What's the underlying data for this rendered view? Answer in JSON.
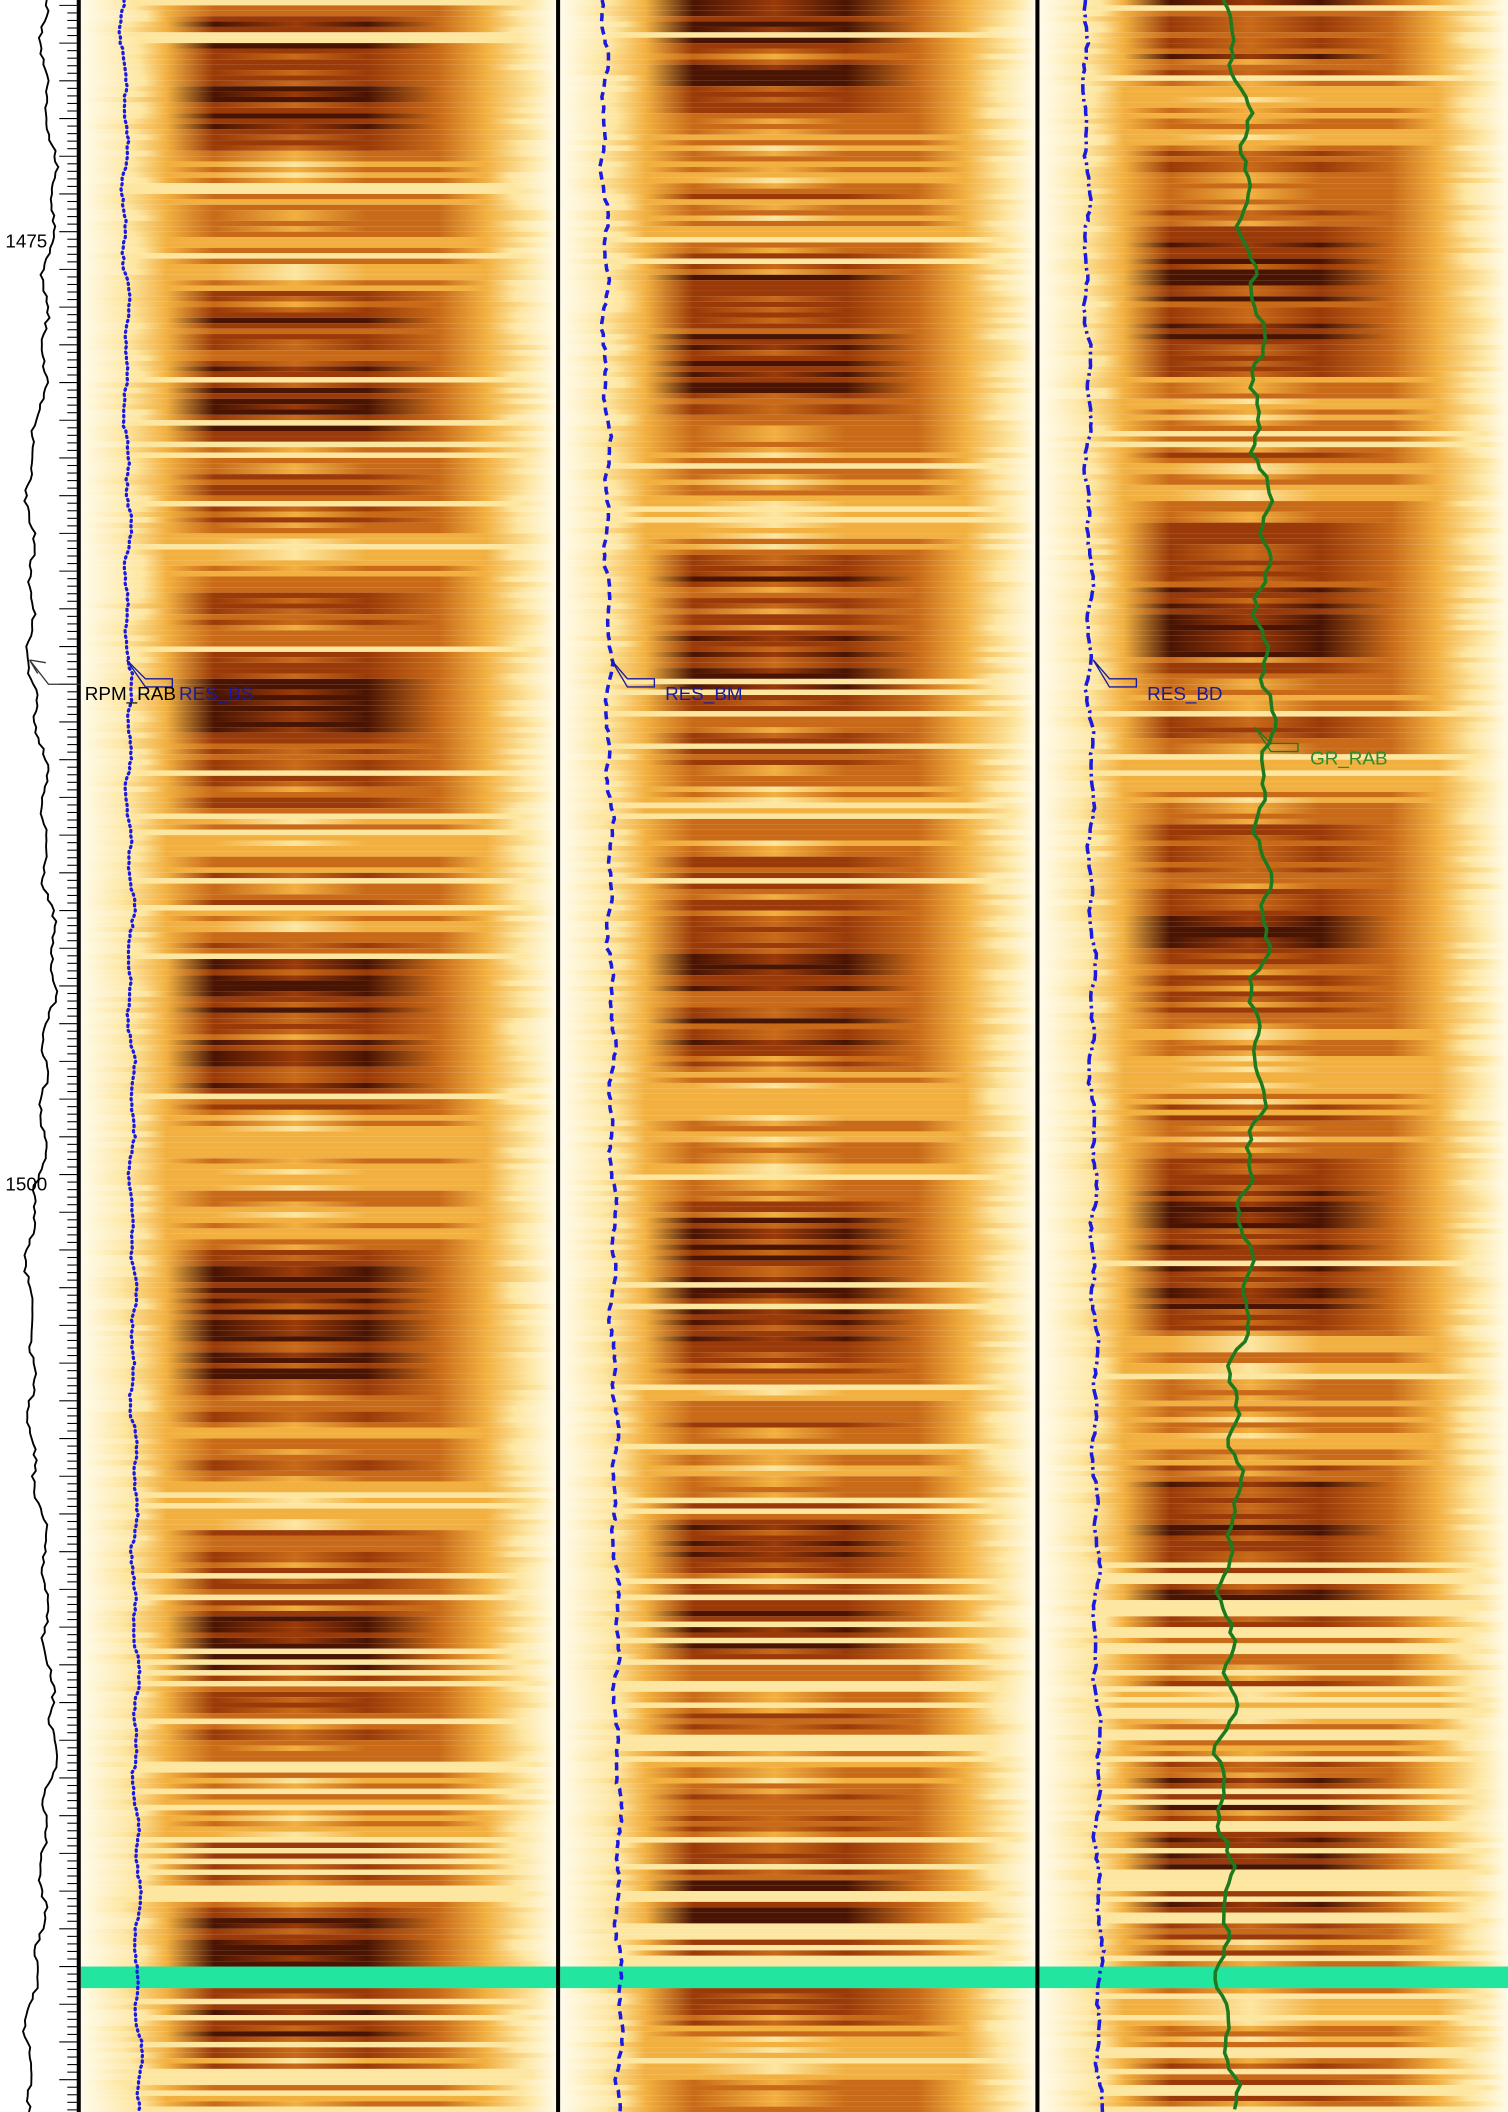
{
  "depth_axis": {
    "labels": [
      "1475",
      "1500"
    ]
  },
  "curve_labels": [
    "RPM_RAB",
    "RES_BS",
    "RES_BM",
    "RES_BD",
    "GR_RAB"
  ]
}
